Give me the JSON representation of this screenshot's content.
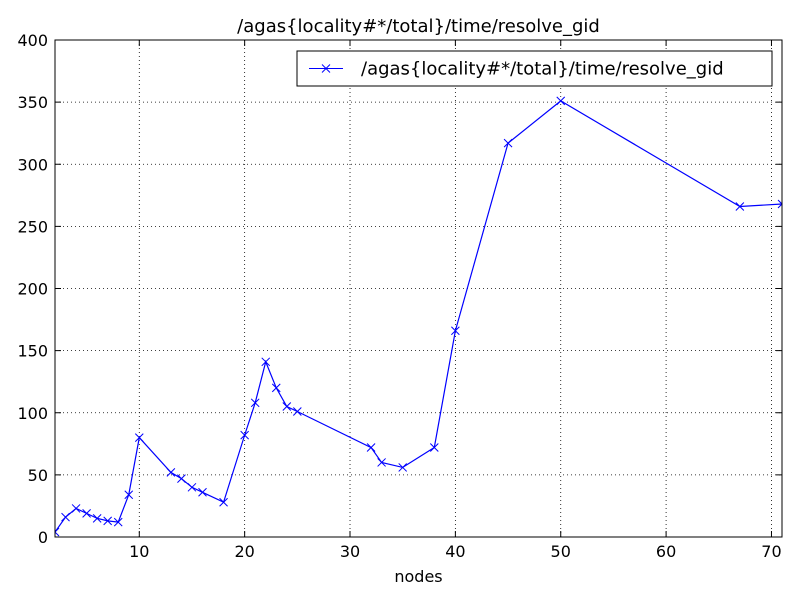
{
  "chart_data": {
    "type": "line",
    "title": "/agas{locality#*/total}/time/resolve_gid",
    "xlabel": "nodes",
    "ylabel": "",
    "xlim": [
      2,
      71
    ],
    "ylim": [
      0,
      400
    ],
    "xticks": [
      10,
      20,
      30,
      40,
      50,
      60,
      70
    ],
    "yticks": [
      0,
      50,
      100,
      150,
      200,
      250,
      300,
      350,
      400
    ],
    "grid": true,
    "legend_position": "top-right",
    "color": "#0000ff",
    "marker": "x",
    "series": [
      {
        "name": "/agas{locality#*/total}/time/resolve_gid",
        "x": [
          2,
          3,
          4,
          5,
          6,
          7,
          8,
          9,
          10,
          13,
          14,
          15,
          16,
          18,
          20,
          21,
          22,
          23,
          24,
          25,
          32,
          33,
          35,
          38,
          40,
          45,
          50,
          67,
          71
        ],
        "y": [
          4,
          16,
          23,
          19,
          15,
          13,
          12,
          34,
          80,
          52,
          47,
          40,
          36,
          28,
          82,
          108,
          141,
          120,
          105,
          101,
          72,
          60,
          56,
          72,
          166,
          317,
          351,
          266,
          268
        ]
      }
    ]
  }
}
